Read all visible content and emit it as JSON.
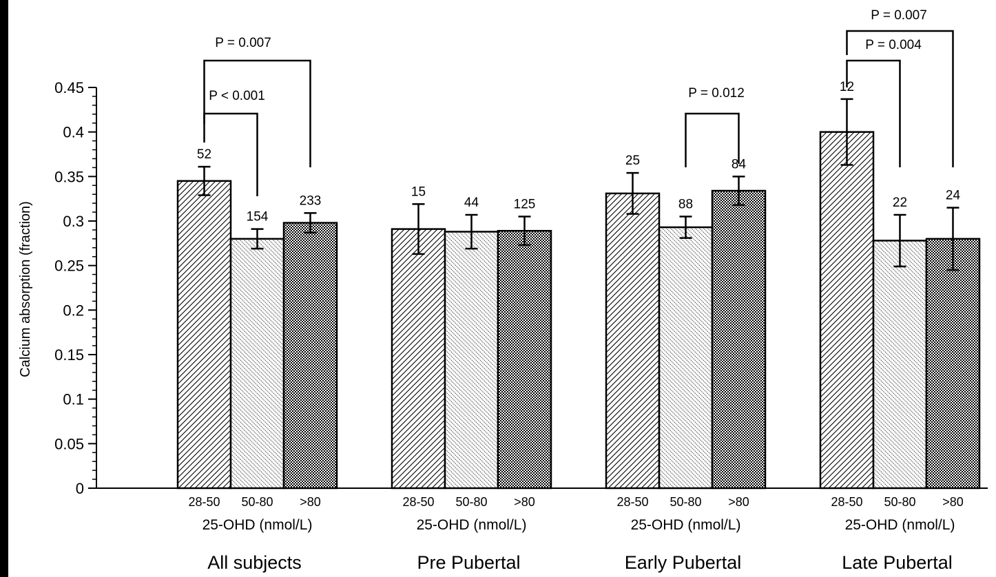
{
  "chart_data": {
    "type": "bar",
    "ylabel": "Calcium absorption (fraction)",
    "xlabel": "25-OHD (nmol/L)",
    "ylim": [
      0,
      0.45
    ],
    "yticks": [
      0,
      0.05,
      0.1,
      0.15,
      0.2,
      0.25,
      0.3,
      0.35,
      0.4,
      0.45
    ],
    "ytick_labels": [
      "0",
      "0.05",
      "0.1",
      "0.15",
      "0.2",
      "0.25",
      "0.3",
      "0.35",
      "0.4",
      "0.45"
    ],
    "subcategories": [
      "28-50",
      "50-80",
      ">80"
    ],
    "bar_patterns": [
      "diagonal-hatch",
      "dotted-hatch",
      "checkered"
    ],
    "grid": false,
    "groups": [
      {
        "name": "All subjects",
        "x_label": "25-OHD (nmol/L)",
        "values": [
          0.345,
          0.28,
          0.298
        ],
        "errors": [
          0.016,
          0.011,
          0.011
        ],
        "n": [
          "52",
          "154",
          "233"
        ]
      },
      {
        "name": "Pre Pubertal",
        "x_label": "25-OHD (nmol/L)",
        "values": [
          0.291,
          0.288,
          0.289
        ],
        "errors": [
          0.028,
          0.019,
          0.016
        ],
        "n": [
          "15",
          "44",
          "125"
        ]
      },
      {
        "name": "Early Pubertal",
        "x_label": "25-OHD (nmol/L)",
        "values": [
          0.331,
          0.293,
          0.334
        ],
        "errors": [
          0.023,
          0.012,
          0.016
        ],
        "n": [
          "25",
          "88",
          "84"
        ]
      },
      {
        "name": "Late Pubertal",
        "x_label": "25-OHD (nmol/L)",
        "values": [
          0.4,
          0.278,
          0.28
        ],
        "errors": [
          0.037,
          0.029,
          0.035
        ],
        "n": [
          "12",
          "22",
          "24"
        ]
      }
    ],
    "annotations": [
      {
        "group": 0,
        "from_bar": 0,
        "to_bar": 2,
        "label": "P = 0.007"
      },
      {
        "group": 0,
        "from_bar": 0,
        "to_bar": 1,
        "label": "P < 0.001"
      },
      {
        "group": 2,
        "from_bar": 1,
        "to_bar": 2,
        "label": "P =  0.012"
      },
      {
        "group": 3,
        "from_bar": 0,
        "to_bar": 2,
        "label": "P = 0.007"
      },
      {
        "group": 3,
        "from_bar": 0,
        "to_bar": 1,
        "label": "P = 0.004"
      }
    ]
  }
}
